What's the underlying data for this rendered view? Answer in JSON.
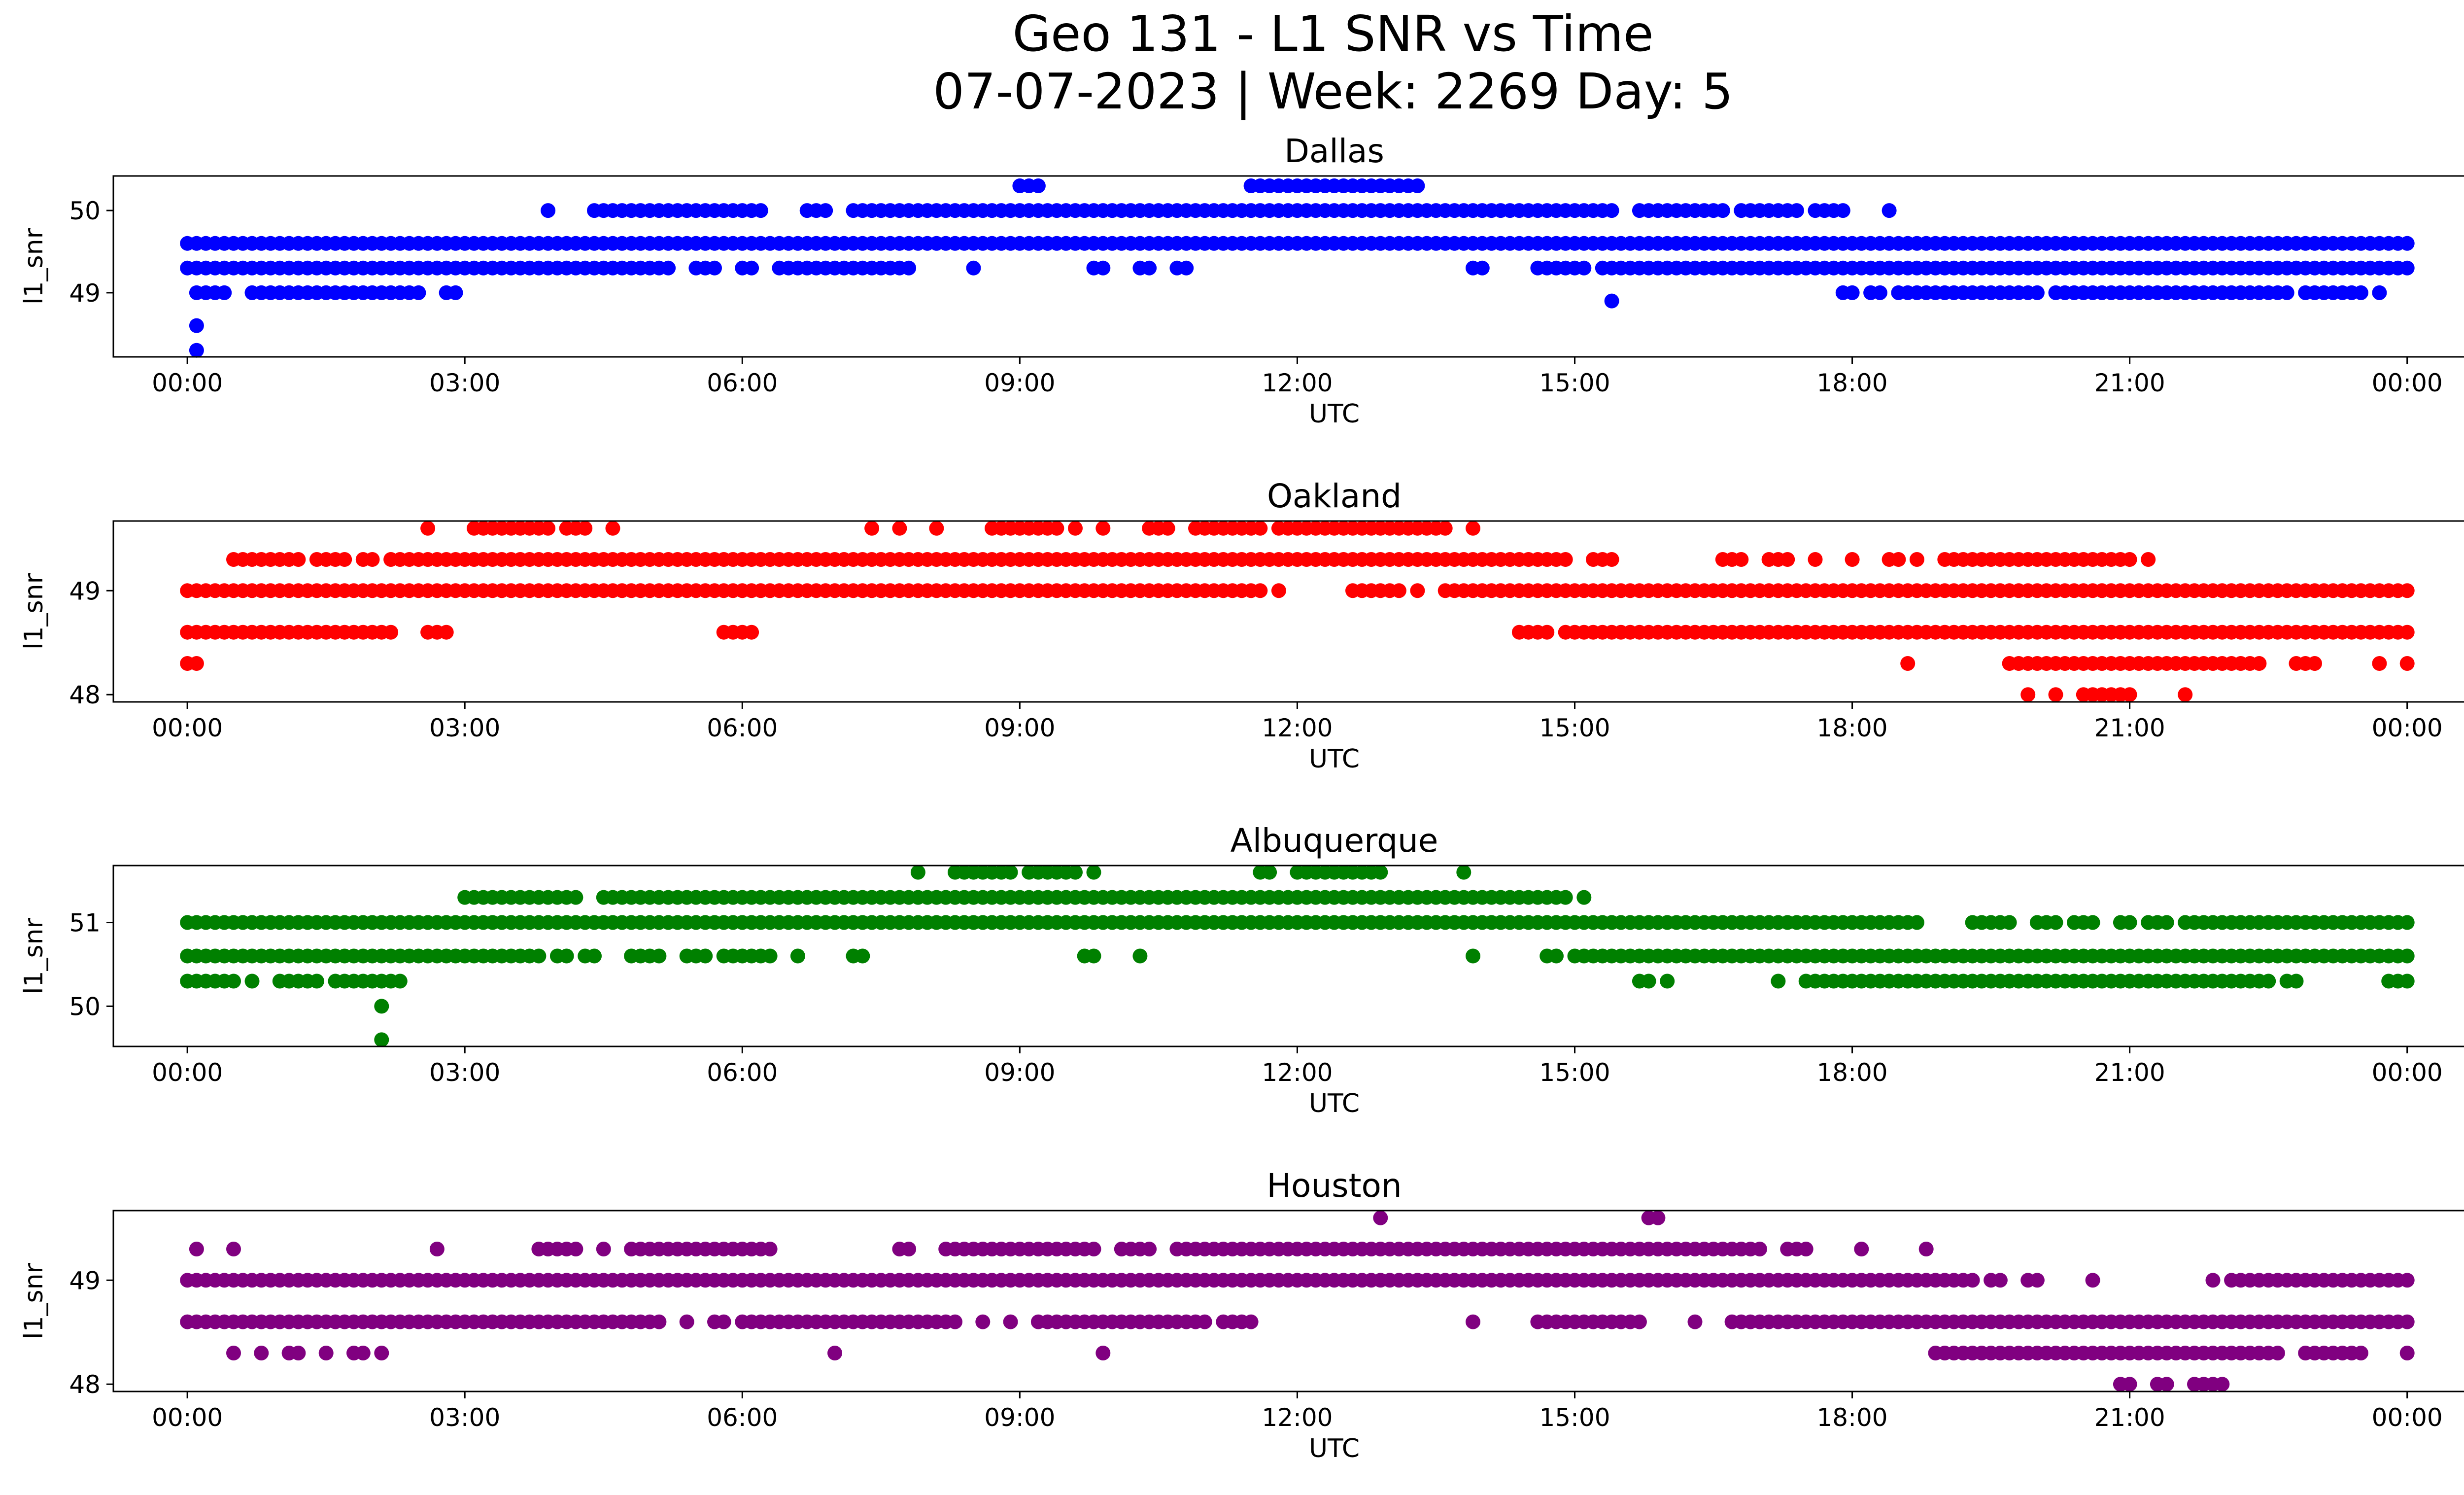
{
  "figure": {
    "title_line1": "Geo 131 - L1 SNR vs Time",
    "title_line2": "07-07-2023 | Week: 2269 Day: 5"
  },
  "chart_data": [
    {
      "type": "scatter",
      "title": "Dallas",
      "xlabel": "UTC",
      "ylabel": "l1_snr",
      "color": "#0000ff",
      "xlim_hours": [
        -0.8,
        25.6
      ],
      "ylim": [
        48.22,
        50.42
      ],
      "x_ticks": [
        "00:00",
        "03:00",
        "06:00",
        "09:00",
        "12:00",
        "15:00",
        "18:00",
        "21:00",
        "00:00"
      ],
      "y_ticks": [
        49,
        50
      ],
      "bands": [
        {
          "value": 50.3,
          "segments": [
            [
              9.0,
              9.2
            ],
            [
              11.5,
              13.3
            ]
          ]
        },
        {
          "value": 50.0,
          "segments": [
            [
              3.9,
              3.9
            ],
            [
              4.4,
              6.2
            ],
            [
              6.7,
              6.9
            ],
            [
              7.2,
              15.4
            ],
            [
              15.7,
              16.6
            ],
            [
              16.8,
              17.4
            ],
            [
              17.6,
              17.9
            ],
            [
              18.4,
              18.4
            ]
          ]
        },
        {
          "value": 49.6,
          "segments": [
            [
              0.0,
              1.8
            ],
            [
              1.9,
              24.0
            ]
          ]
        },
        {
          "value": 49.3,
          "segments": [
            [
              0.0,
              5.2
            ],
            [
              5.5,
              5.7
            ],
            [
              6.0,
              6.1
            ],
            [
              6.4,
              7.8
            ],
            [
              8.5,
              8.5
            ],
            [
              9.8,
              9.9
            ],
            [
              10.3,
              10.4
            ],
            [
              10.7,
              10.8
            ],
            [
              13.9,
              14.0
            ],
            [
              14.6,
              15.1
            ],
            [
              15.3,
              15.9
            ],
            [
              16.0,
              24.0
            ]
          ]
        },
        {
          "value": 49.0,
          "segments": [
            [
              0.1,
              0.4
            ],
            [
              0.7,
              2.5
            ],
            [
              2.8,
              2.9
            ],
            [
              17.9,
              18.0
            ],
            [
              18.2,
              18.3
            ],
            [
              18.5,
              18.8
            ],
            [
              18.9,
              20.0
            ],
            [
              20.2,
              20.7
            ],
            [
              20.8,
              22.7
            ],
            [
              22.9,
              23.3
            ],
            [
              23.4,
              23.5
            ],
            [
              23.7,
              23.7
            ]
          ]
        },
        {
          "value": 48.9,
          "segments": [
            [
              15.4,
              15.4
            ]
          ]
        },
        {
          "value": 48.6,
          "segments": [
            [
              0.1,
              0.1
            ]
          ]
        },
        {
          "value": 48.3,
          "segments": [
            [
              0.1,
              0.1
            ]
          ]
        }
      ]
    },
    {
      "type": "scatter",
      "title": "Oakland",
      "xlabel": "UTC",
      "ylabel": "l1_snr",
      "color": "#ff0000",
      "xlim_hours": [
        -0.8,
        25.6
      ],
      "ylim": [
        47.93,
        49.67
      ],
      "x_ticks": [
        "00:00",
        "03:00",
        "06:00",
        "09:00",
        "12:00",
        "15:00",
        "18:00",
        "21:00",
        "00:00"
      ],
      "y_ticks": [
        48,
        49
      ],
      "bands": [
        {
          "value": 49.6,
          "segments": [
            [
              2.6,
              2.6
            ],
            [
              3.1,
              3.9
            ],
            [
              4.1,
              4.3
            ],
            [
              4.6,
              4.6
            ],
            [
              7.4,
              7.4
            ],
            [
              7.7,
              7.7
            ],
            [
              8.1,
              8.1
            ],
            [
              8.7,
              9.4
            ],
            [
              9.6,
              9.6
            ],
            [
              9.9,
              9.9
            ],
            [
              10.4,
              10.6
            ],
            [
              10.9,
              11.6
            ],
            [
              11.8,
              13.6
            ],
            [
              13.9,
              13.9
            ]
          ]
        },
        {
          "value": 49.3,
          "segments": [
            [
              0.5,
              1.2
            ],
            [
              1.4,
              1.7
            ],
            [
              1.9,
              2.0
            ],
            [
              2.2,
              14.9
            ],
            [
              15.2,
              15.4
            ],
            [
              16.6,
              16.8
            ],
            [
              17.1,
              17.3
            ],
            [
              17.6,
              17.6
            ],
            [
              18.0,
              18.0
            ],
            [
              18.4,
              18.5
            ],
            [
              18.7,
              18.7
            ],
            [
              19.0,
              21.0
            ],
            [
              21.2,
              21.2
            ]
          ]
        },
        {
          "value": 49.0,
          "segments": [
            [
              0.0,
              11.6
            ],
            [
              11.8,
              11.8
            ],
            [
              12.6,
              13.1
            ],
            [
              13.3,
              13.3
            ],
            [
              13.6,
              24.0
            ]
          ]
        },
        {
          "value": 48.6,
          "segments": [
            [
              0.0,
              2.2
            ],
            [
              2.6,
              2.8
            ],
            [
              5.8,
              6.1
            ],
            [
              14.4,
              14.7
            ],
            [
              14.9,
              24.0
            ]
          ]
        },
        {
          "value": 48.3,
          "segments": [
            [
              0.0,
              0.1
            ],
            [
              18.6,
              18.6
            ],
            [
              19.7,
              22.4
            ],
            [
              22.8,
              23.0
            ],
            [
              23.7,
              23.7
            ],
            [
              24.0,
              24.0
            ]
          ]
        },
        {
          "value": 48.0,
          "segments": [
            [
              19.9,
              19.9
            ],
            [
              20.2,
              20.2
            ],
            [
              20.5,
              21.0
            ],
            [
              21.6,
              21.6
            ]
          ]
        }
      ]
    },
    {
      "type": "scatter",
      "title": "Albuquerque",
      "xlabel": "UTC",
      "ylabel": "l1_snr",
      "color": "#008000",
      "xlim_hours": [
        -0.8,
        25.6
      ],
      "ylim": [
        49.52,
        51.68
      ],
      "x_ticks": [
        "00:00",
        "03:00",
        "06:00",
        "09:00",
        "12:00",
        "15:00",
        "18:00",
        "21:00",
        "00:00"
      ],
      "y_ticks": [
        50,
        51
      ],
      "bands": [
        {
          "value": 51.6,
          "segments": [
            [
              7.9,
              7.9
            ],
            [
              8.3,
              8.9
            ],
            [
              9.1,
              9.6
            ],
            [
              9.8,
              9.8
            ],
            [
              11.6,
              11.7
            ],
            [
              12.0,
              12.9
            ],
            [
              13.8,
              13.8
            ]
          ]
        },
        {
          "value": 51.3,
          "segments": [
            [
              3.0,
              4.2
            ],
            [
              4.5,
              14.9
            ],
            [
              15.1,
              15.1
            ]
          ]
        },
        {
          "value": 51.0,
          "segments": [
            [
              0.0,
              18.7
            ],
            [
              19.3,
              19.7
            ],
            [
              20.0,
              20.2
            ],
            [
              20.4,
              20.6
            ],
            [
              20.9,
              21.0
            ],
            [
              21.2,
              21.4
            ],
            [
              21.6,
              24.0
            ]
          ]
        },
        {
          "value": 50.6,
          "segments": [
            [
              0.0,
              3.8
            ],
            [
              4.0,
              4.1
            ],
            [
              4.3,
              4.4
            ],
            [
              4.8,
              5.1
            ],
            [
              5.4,
              5.6
            ],
            [
              5.8,
              6.3
            ],
            [
              6.6,
              6.6
            ],
            [
              7.2,
              7.3
            ],
            [
              9.7,
              9.8
            ],
            [
              10.3,
              10.3
            ],
            [
              13.9,
              13.9
            ],
            [
              14.7,
              14.8
            ],
            [
              15.0,
              24.0
            ]
          ]
        },
        {
          "value": 50.3,
          "segments": [
            [
              0.0,
              0.5
            ],
            [
              0.7,
              0.7
            ],
            [
              1.0,
              1.4
            ],
            [
              1.6,
              2.3
            ],
            [
              15.7,
              15.8
            ],
            [
              16.0,
              16.0
            ],
            [
              17.2,
              17.2
            ],
            [
              17.5,
              22.5
            ],
            [
              22.7,
              22.8
            ],
            [
              23.8,
              24.0
            ]
          ]
        },
        {
          "value": 50.0,
          "segments": [
            [
              2.1,
              2.1
            ]
          ]
        },
        {
          "value": 49.6,
          "segments": [
            [
              2.1,
              2.1
            ]
          ]
        }
      ]
    },
    {
      "type": "scatter",
      "title": "Houston",
      "xlabel": "UTC",
      "ylabel": "l1_snr",
      "color": "#800080",
      "xlim_hours": [
        -0.8,
        25.6
      ],
      "ylim": [
        47.93,
        49.67
      ],
      "x_ticks": [
        "00:00",
        "03:00",
        "06:00",
        "09:00",
        "12:00",
        "15:00",
        "18:00",
        "21:00",
        "00:00"
      ],
      "y_ticks": [
        48,
        49
      ],
      "bands": [
        {
          "value": 49.6,
          "segments": [
            [
              12.9,
              12.9
            ],
            [
              15.8,
              15.9
            ]
          ]
        },
        {
          "value": 49.3,
          "segments": [
            [
              0.1,
              0.1
            ],
            [
              0.5,
              0.5
            ],
            [
              2.7,
              2.7
            ],
            [
              3.8,
              4.2
            ],
            [
              4.5,
              4.5
            ],
            [
              4.8,
              6.3
            ],
            [
              7.7,
              7.8
            ],
            [
              8.2,
              9.8
            ],
            [
              10.1,
              10.4
            ],
            [
              10.7,
              17.0
            ],
            [
              17.3,
              17.5
            ],
            [
              18.1,
              18.1
            ],
            [
              18.8,
              18.8
            ]
          ]
        },
        {
          "value": 49.0,
          "segments": [
            [
              0.0,
              19.3
            ],
            [
              19.5,
              19.6
            ],
            [
              19.9,
              20.0
            ],
            [
              20.6,
              20.6
            ],
            [
              21.9,
              21.9
            ],
            [
              22.1,
              24.0
            ]
          ]
        },
        {
          "value": 48.6,
          "segments": [
            [
              0.0,
              5.1
            ],
            [
              5.4,
              5.4
            ],
            [
              5.7,
              5.8
            ],
            [
              6.0,
              8.3
            ],
            [
              8.6,
              8.6
            ],
            [
              8.9,
              8.9
            ],
            [
              9.2,
              11.0
            ],
            [
              11.2,
              11.5
            ],
            [
              13.9,
              13.9
            ],
            [
              14.6,
              15.7
            ],
            [
              16.3,
              16.3
            ],
            [
              16.7,
              24.0
            ]
          ]
        },
        {
          "value": 48.3,
          "segments": [
            [
              0.5,
              0.5
            ],
            [
              0.8,
              0.8
            ],
            [
              1.1,
              1.2
            ],
            [
              1.5,
              1.5
            ],
            [
              1.8,
              1.9
            ],
            [
              2.1,
              2.1
            ],
            [
              7.0,
              7.0
            ],
            [
              9.9,
              9.9
            ],
            [
              18.9,
              22.6
            ],
            [
              22.9,
              23.5
            ],
            [
              24.0,
              24.0
            ]
          ]
        },
        {
          "value": 48.0,
          "segments": [
            [
              20.9,
              21.0
            ],
            [
              21.3,
              21.4
            ],
            [
              21.7,
              22.0
            ]
          ]
        }
      ]
    }
  ]
}
